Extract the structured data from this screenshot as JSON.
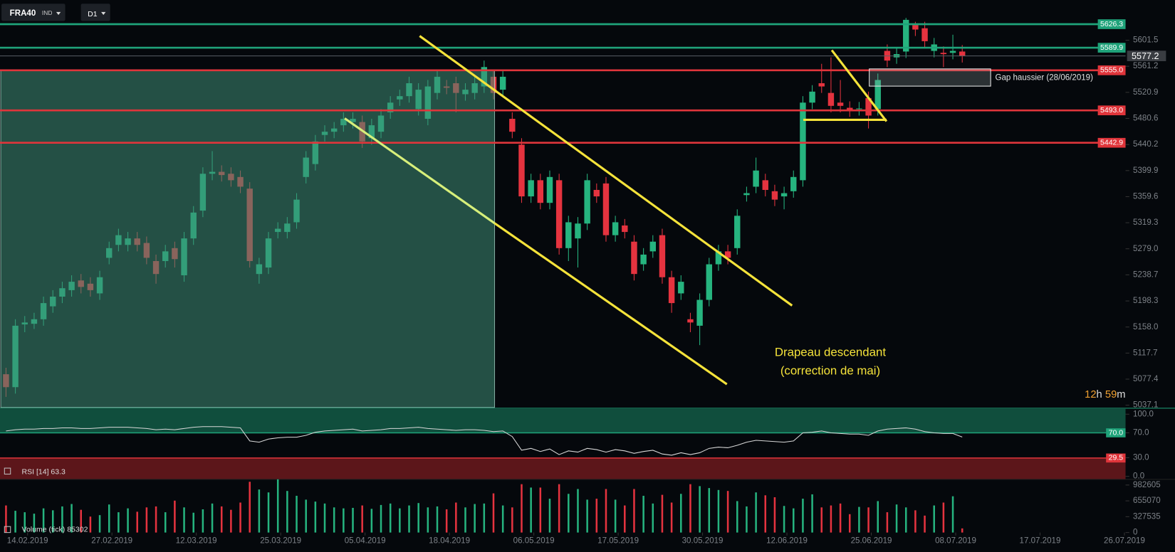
{
  "chart_data": [
    {
      "type": "candlestick",
      "symbol": "FRA40",
      "market": "IND",
      "timeframe": "D1",
      "xlim": [
        -0.64,
        119.42
      ],
      "xticks": [
        {
          "value": 2.3,
          "label": "14.02.2019"
        },
        {
          "value": 11.3,
          "label": "27.02.2019"
        },
        {
          "value": 20.3,
          "label": "12.03.2019"
        },
        {
          "value": 29.3,
          "label": "25.03.2019"
        },
        {
          "value": 38.3,
          "label": "05.04.2019"
        },
        {
          "value": 47.3,
          "label": "18.04.2019"
        },
        {
          "value": 56.3,
          "label": "06.05.2019"
        },
        {
          "value": 65.3,
          "label": "17.05.2019"
        },
        {
          "value": 74.3,
          "label": "30.05.2019"
        },
        {
          "value": 83.3,
          "label": "12.06.2019"
        },
        {
          "value": 92.3,
          "label": "25.06.2019"
        },
        {
          "value": 101.3,
          "label": "08.07.2019"
        },
        {
          "value": 110.3,
          "label": "17.07.2019"
        },
        {
          "value": 119.3,
          "label": "26.07.2019"
        }
      ],
      "ylim": [
        5037.1,
        5663.7
      ],
      "yticks": [
        5601.5,
        5561.2,
        5520.9,
        5480.6,
        5440.2,
        5399.9,
        5359.6,
        5319.3,
        {
          "value": 5279,
          "label": "5279.0"
        },
        5238.7,
        5198.3,
        {
          "value": 5158,
          "label": "5158.0"
        },
        5117.7,
        5077.4,
        5037.1
      ],
      "up_color": "#26b47f",
      "down_color": "#e5333f",
      "open": [
        5085,
        5065,
        5162,
        5163,
        5170,
        5190,
        5205,
        5215,
        5230,
        5225,
        5210,
        5265,
        5285,
        5285,
        5295,
        5288,
        5260,
        5260,
        5280,
        5238,
        5295,
        5338,
        5395,
        5398,
        5395,
        5390,
        5372,
        5240,
        5250,
        5305,
        5305,
        5320,
        5390,
        5410,
        5455,
        5460,
        5470,
        5475,
        5475,
        5450,
        5460,
        5490,
        5510,
        5515,
        5495,
        5480,
        5520,
        5530,
        5535,
        5518,
        5520,
        5530,
        5545,
        5525,
        5480,
        5440,
        5360,
        5385,
        5350,
        5385,
        5280,
        5295,
        5318,
        5370,
        5380,
        5300,
        5315,
        5290,
        5255,
        5275,
        5300,
        5235,
        5210,
        5170,
        5160,
        5200,
        5255,
        5275,
        5280,
        5362,
        5375,
        5385,
        5368,
        5360,
        5368,
        5385,
        5505,
        5535,
        5520,
        5505,
        5497,
        5495,
        5512,
        5495,
        5585,
        5575,
        5584,
        5625,
        5620,
        5585,
        5582,
        5582,
        5584
      ],
      "high": [
        5095,
        5170,
        5175,
        5180,
        5205,
        5215,
        5228,
        5238,
        5240,
        5235,
        5245,
        5290,
        5310,
        5305,
        5305,
        5298,
        5270,
        5285,
        5290,
        5305,
        5345,
        5405,
        5430,
        5408,
        5405,
        5400,
        5382,
        5265,
        5305,
        5320,
        5328,
        5365,
        5430,
        5455,
        5470,
        5475,
        5490,
        5490,
        5485,
        5480,
        5495,
        5515,
        5525,
        5545,
        5535,
        5540,
        5555,
        5540,
        5545,
        5535,
        5545,
        5570,
        5555,
        5555,
        5490,
        5450,
        5395,
        5395,
        5400,
        5395,
        5330,
        5328,
        5395,
        5380,
        5390,
        5330,
        5325,
        5300,
        5280,
        5300,
        5310,
        5245,
        5238,
        5180,
        5210,
        5265,
        5285,
        5285,
        5340,
        5375,
        5420,
        5395,
        5378,
        5375,
        5400,
        5515,
        5532,
        5565,
        5575,
        5540,
        5507,
        5506,
        5522,
        5550,
        5595,
        5590,
        5636,
        5630,
        5630,
        5605,
        5592,
        5610,
        5594
      ],
      "low": [
        5050,
        5055,
        5150,
        5155,
        5160,
        5180,
        5195,
        5205,
        5210,
        5205,
        5200,
        5255,
        5275,
        5275,
        5275,
        5255,
        5225,
        5250,
        5250,
        5228,
        5285,
        5328,
        5385,
        5383,
        5375,
        5365,
        5250,
        5225,
        5240,
        5295,
        5295,
        5310,
        5380,
        5400,
        5445,
        5450,
        5460,
        5465,
        5435,
        5440,
        5450,
        5480,
        5500,
        5505,
        5485,
        5470,
        5510,
        5518,
        5490,
        5508,
        5510,
        5520,
        5510,
        5515,
        5450,
        5350,
        5350,
        5340,
        5340,
        5270,
        5260,
        5250,
        5308,
        5350,
        5290,
        5290,
        5295,
        5230,
        5245,
        5265,
        5225,
        5180,
        5200,
        5150,
        5130,
        5190,
        5245,
        5255,
        5270,
        5352,
        5365,
        5360,
        5345,
        5340,
        5358,
        5375,
        5495,
        5520,
        5490,
        5490,
        5483,
        5485,
        5465,
        5485,
        5560,
        5565,
        5574,
        5608,
        5590,
        5575,
        5560,
        5572,
        5567
      ],
      "close": [
        5065,
        5160,
        5165,
        5170,
        5195,
        5205,
        5218,
        5228,
        5220,
        5215,
        5235,
        5280,
        5300,
        5295,
        5285,
        5265,
        5240,
        5275,
        5263,
        5295,
        5335,
        5395,
        5398,
        5393,
        5385,
        5375,
        5260,
        5255,
        5295,
        5310,
        5318,
        5355,
        5420,
        5445,
        5460,
        5465,
        5480,
        5480,
        5445,
        5470,
        5485,
        5505,
        5515,
        5535,
        5525,
        5530,
        5545,
        5528,
        5520,
        5525,
        5535,
        5560,
        5520,
        5545,
        5460,
        5360,
        5385,
        5350,
        5390,
        5280,
        5320,
        5318,
        5385,
        5360,
        5300,
        5320,
        5305,
        5240,
        5270,
        5290,
        5235,
        5195,
        5228,
        5165,
        5200,
        5255,
        5275,
        5265,
        5330,
        5365,
        5400,
        5370,
        5355,
        5365,
        5390,
        5505,
        5522,
        5530,
        5500,
        5500,
        5493,
        5496,
        5485,
        5540,
        5570,
        5580,
        5633,
        5618,
        5600,
        5595,
        5580,
        5585,
        5577.2
      ],
      "levels": [
        {
          "value": 5626.3,
          "color": "#1fa37a"
        },
        {
          "value": 5589.9,
          "color": "#1fa37a"
        },
        {
          "value": 5555,
          "label": "5555.0",
          "color": "#e0353b"
        },
        {
          "value": 5493,
          "label": "5493.0",
          "color": "#e0353b"
        },
        {
          "value": 5442.9,
          "color": "#e0353b"
        }
      ],
      "annotations": [
        "Drapeau descendant",
        "(correction de mai)"
      ],
      "gap_label": "Gap haussier (28/06/2019)",
      "countdown": {
        "hours": 12,
        "hours_unit": "h",
        "minutes": 59,
        "minutes_unit": "m"
      }
    },
    {
      "type": "line",
      "name": "RSI",
      "period": "[14]",
      "color": "#d8d8d8",
      "values": [
        73,
        75,
        76,
        76,
        77,
        77,
        78,
        78,
        77,
        77,
        78,
        79,
        79,
        79,
        78,
        77,
        75,
        76,
        75,
        77,
        79,
        80,
        80,
        80,
        79,
        78,
        57,
        55,
        60,
        62,
        63,
        63,
        66,
        71,
        73,
        74,
        75,
        76,
        73,
        74,
        75,
        77,
        77,
        78,
        79,
        77,
        76,
        75,
        74,
        75,
        75,
        74,
        72,
        73,
        64,
        42,
        45,
        40,
        44,
        35,
        41,
        39,
        45,
        43,
        39,
        43,
        41,
        37,
        40,
        42,
        36,
        34,
        38,
        35,
        38,
        45,
        47,
        46,
        50,
        55,
        58,
        57,
        56,
        55,
        57,
        70,
        71,
        73,
        70,
        69,
        68,
        68,
        66,
        73,
        76,
        77,
        78,
        76,
        72,
        70,
        69,
        69,
        63.3
      ],
      "ylim": [
        0,
        100
      ],
      "yticks": [
        {
          "value": 100,
          "label": "100.0"
        },
        {
          "value": 70,
          "label": "70.0"
        },
        {
          "value": 30,
          "label": "30.0"
        },
        {
          "value": 0,
          "label": "0.0"
        }
      ],
      "levels": [
        {
          "value": 70,
          "label": "70.0",
          "color": "#1fa37a"
        },
        {
          "value": 29.5,
          "color": "#e0353b"
        }
      ]
    },
    {
      "type": "bar",
      "name": "Volume",
      "unit": "(tick)",
      "values": [
        560000,
        450000,
        420000,
        390000,
        500000,
        460000,
        540000,
        590000,
        470000,
        330000,
        360000,
        580000,
        420000,
        500000,
        430000,
        520000,
        540000,
        420000,
        660000,
        520000,
        410000,
        480000,
        600000,
        540000,
        470000,
        620000,
        1050000,
        890000,
        830000,
        1100000,
        860000,
        760000,
        680000,
        640000,
        600000,
        520000,
        500000,
        510000,
        560000,
        490000,
        570000,
        600000,
        500000,
        560000,
        610000,
        520000,
        540000,
        480000,
        620000,
        520000,
        590000,
        600000,
        810000,
        560000,
        520000,
        1000000,
        930000,
        930000,
        700000,
        1000000,
        800000,
        900000,
        680000,
        700000,
        900000,
        680000,
        560000,
        900000,
        760000,
        600000,
        780000,
        620000,
        800000,
        1000000,
        960000,
        920000,
        880000,
        860000,
        650000,
        540000,
        830000,
        770000,
        730000,
        550000,
        500000,
        700000,
        790000,
        520000,
        560000,
        600000,
        380000,
        530000,
        520000,
        650000,
        420000,
        580000,
        520000,
        460000,
        350000,
        560000,
        620000,
        750000,
        85302
      ],
      "ylim": [
        0,
        1100000
      ],
      "yticks": [
        982605,
        655070,
        327535,
        0
      ]
    }
  ]
}
